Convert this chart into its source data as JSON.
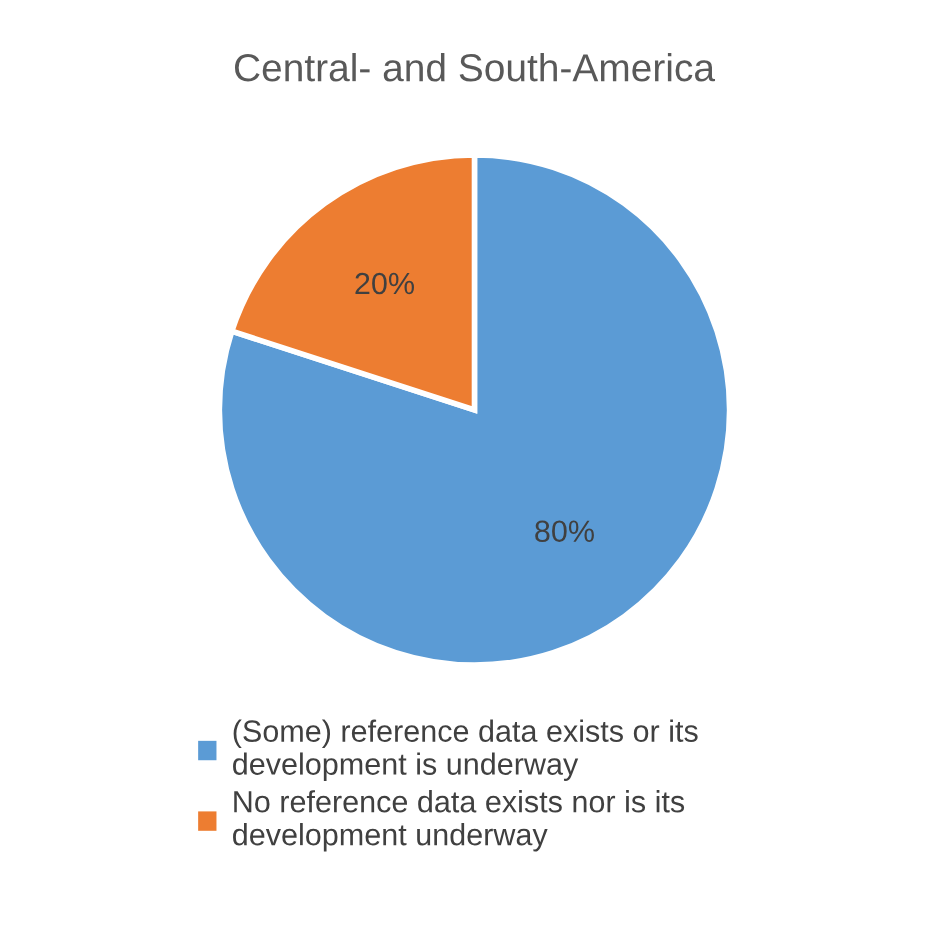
{
  "chart_data": {
    "type": "pie",
    "title": "Central- and South-America",
    "categories": [
      "(Some) reference data exists or its development is underway",
      "No reference data exists nor is its development underway"
    ],
    "values": [
      80,
      20
    ],
    "colors": [
      "#5b9bd5",
      "#ed7d31"
    ],
    "value_labels": [
      "80%",
      "20%"
    ],
    "legend": "bottom"
  }
}
